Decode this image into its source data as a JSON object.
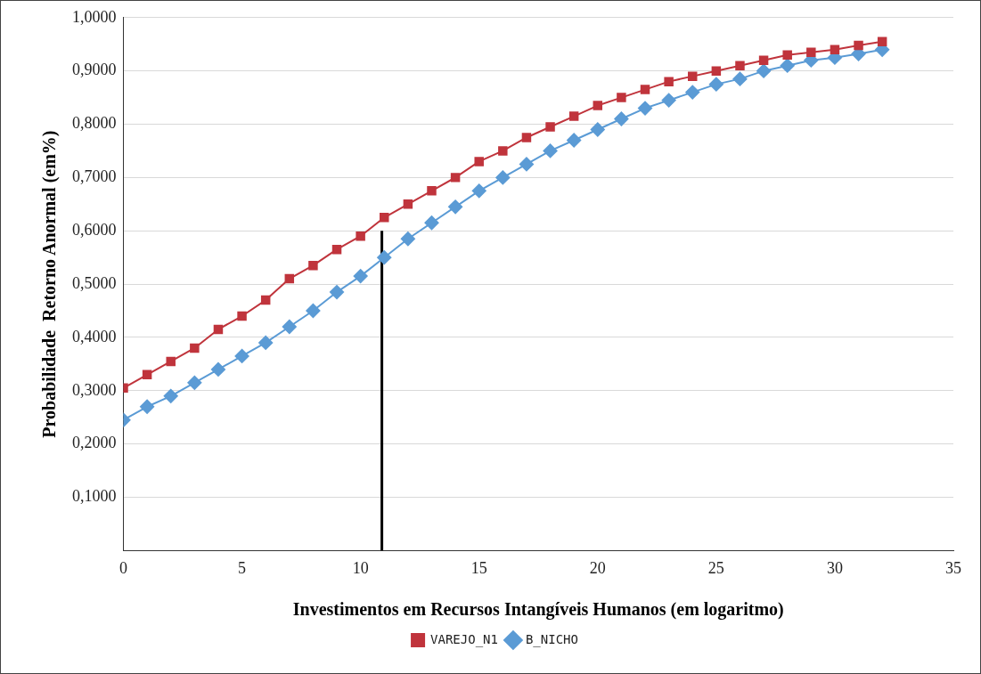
{
  "chart_data": {
    "type": "line",
    "xlabel": "Investimentos em Recursos Intangíveis Humanos (em logaritmo)",
    "ylabel": "Probabilidade  Retorno Anormal (em%)",
    "x": [
      0,
      1,
      2,
      3,
      4,
      5,
      6,
      7,
      8,
      9,
      10,
      11,
      12,
      13,
      14,
      15,
      16,
      17,
      18,
      19,
      20,
      21,
      22,
      23,
      24,
      25,
      26,
      27,
      28,
      29,
      30,
      31,
      32
    ],
    "series": [
      {
        "name": "VAREJO_N1",
        "color": "#c0343c",
        "marker": "square",
        "values": [
          0.305,
          0.33,
          0.355,
          0.38,
          0.415,
          0.44,
          0.47,
          0.51,
          0.535,
          0.565,
          0.59,
          0.625,
          0.65,
          0.675,
          0.7,
          0.73,
          0.75,
          0.775,
          0.795,
          0.815,
          0.835,
          0.85,
          0.865,
          0.88,
          0.89,
          0.9,
          0.91,
          0.92,
          0.93,
          0.935,
          0.94,
          0.948,
          0.955
        ]
      },
      {
        "name": "B_NICHO",
        "color": "#5b9bd5",
        "marker": "diamond",
        "values": [
          0.245,
          0.27,
          0.29,
          0.315,
          0.34,
          0.365,
          0.39,
          0.42,
          0.45,
          0.485,
          0.515,
          0.55,
          0.585,
          0.615,
          0.645,
          0.675,
          0.7,
          0.725,
          0.75,
          0.77,
          0.79,
          0.81,
          0.83,
          0.845,
          0.86,
          0.875,
          0.885,
          0.9,
          0.91,
          0.92,
          0.925,
          0.932,
          0.94
        ]
      },
      {
        "type": "line",
        "color": "#000000",
        "marker": "none",
        "x": [
          10.9,
          10.9
        ],
        "values": [
          0,
          0.6
        ]
      }
    ],
    "xlim": [
      0,
      35
    ],
    "xticks": [
      0,
      5,
      10,
      15,
      20,
      25,
      30,
      35
    ],
    "ylim": [
      0,
      1
    ],
    "yticks": [
      {
        "value": 0,
        "label": null
      },
      {
        "value": 0.1,
        "label": "0,1000"
      },
      {
        "value": 0.2,
        "label": "0,2000"
      },
      {
        "value": 0.3,
        "label": "0,3000"
      },
      {
        "value": 0.4,
        "label": "0,4000"
      },
      {
        "value": 0.5,
        "label": "0,5000"
      },
      {
        "value": 0.6,
        "label": "0,6000"
      },
      {
        "value": 0.7,
        "label": "0,7000"
      },
      {
        "value": 0.8,
        "label": "0,8000"
      },
      {
        "value": 0.9,
        "label": "0,9000"
      },
      {
        "value": 1,
        "label": "1,0000"
      }
    ],
    "grid": "y",
    "legend": "bottom"
  }
}
